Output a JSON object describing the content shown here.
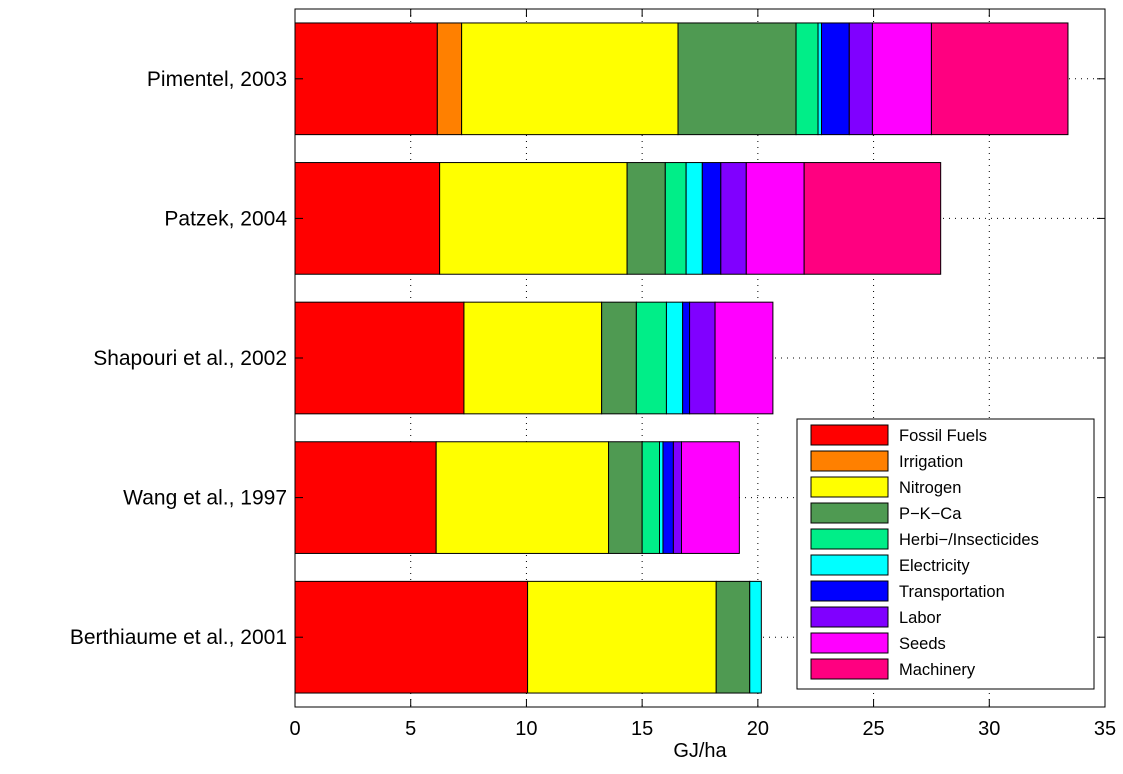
{
  "chart_data": {
    "type": "bar",
    "orientation": "horizontal",
    "stacked": true,
    "xlabel": "GJ/ha",
    "ylabel": "",
    "xlim": [
      0,
      35
    ],
    "xticks": [
      0,
      5,
      10,
      15,
      20,
      25,
      30,
      35
    ],
    "grid": "dotted",
    "legend_position": "bottom-right",
    "categories": [
      "Pimentel, 2003",
      "Patzek, 2004",
      "Shapouri et al., 2002",
      "Wang et al., 1997",
      "Berthiaume et al., 2001"
    ],
    "series": [
      {
        "name": "Fossil Fuels",
        "color": "#ff0000",
        "values": [
          6.15,
          6.25,
          7.3,
          6.1,
          10.05
        ]
      },
      {
        "name": "Irrigation",
        "color": "#ff8000",
        "values": [
          1.05,
          0,
          0,
          0,
          0
        ]
      },
      {
        "name": "Nitrogen",
        "color": "#ffff00",
        "values": [
          9.35,
          8.1,
          5.95,
          7.45,
          8.15
        ]
      },
      {
        "name": "P−K−Ca",
        "color": "#4f9a52",
        "values": [
          5.1,
          1.65,
          1.5,
          1.45,
          1.45
        ]
      },
      {
        "name": "Herbi−/Insecticides",
        "color": "#00ee88",
        "values": [
          0.95,
          0.9,
          1.3,
          0.75,
          0
        ]
      },
      {
        "name": "Electricity",
        "color": "#00ffff",
        "values": [
          0.15,
          0.7,
          0.7,
          0.15,
          0.5
        ]
      },
      {
        "name": "Transportation",
        "color": "#0000ff",
        "values": [
          1.2,
          0.8,
          0.3,
          0.45,
          0
        ]
      },
      {
        "name": "Labor",
        "color": "#8000ff",
        "values": [
          1.0,
          1.1,
          1.1,
          0.35,
          0
        ]
      },
      {
        "name": "Seeds",
        "color": "#ff00ff",
        "values": [
          2.55,
          2.5,
          2.5,
          2.5,
          0
        ]
      },
      {
        "name": "Machinery",
        "color": "#ff0080",
        "values": [
          5.9,
          5.9,
          0,
          0,
          0
        ]
      }
    ]
  }
}
